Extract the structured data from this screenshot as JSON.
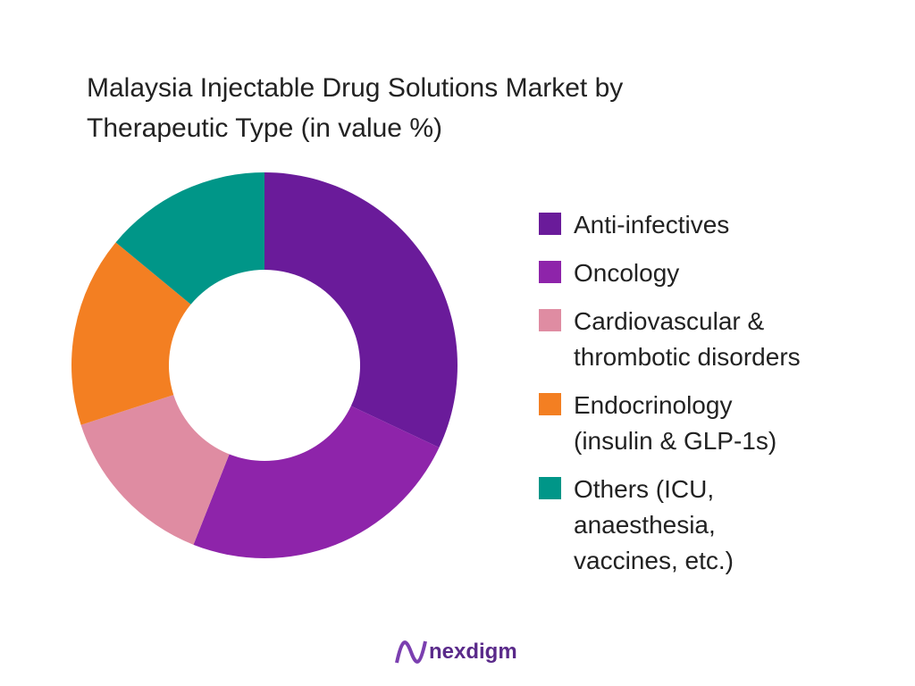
{
  "chart_data": {
    "type": "donut",
    "title": "Malaysia Injectable Drug Solutions Market by Therapeutic Type (in value %)",
    "categories": [
      "Anti-infectives",
      "Oncology",
      "Cardiovascular &\nthrombotic disorders",
      "Endocrinology\n(insulin & GLP-1s)",
      "Others (ICU,\nanaesthesia,\nvaccines, etc.)"
    ],
    "values": [
      32,
      24,
      14,
      16,
      14
    ],
    "colors": [
      "#6a1b9a",
      "#8e24aa",
      "#df8ca2",
      "#f37f22",
      "#009688"
    ],
    "legend": "right"
  },
  "brand": "nexdigm"
}
